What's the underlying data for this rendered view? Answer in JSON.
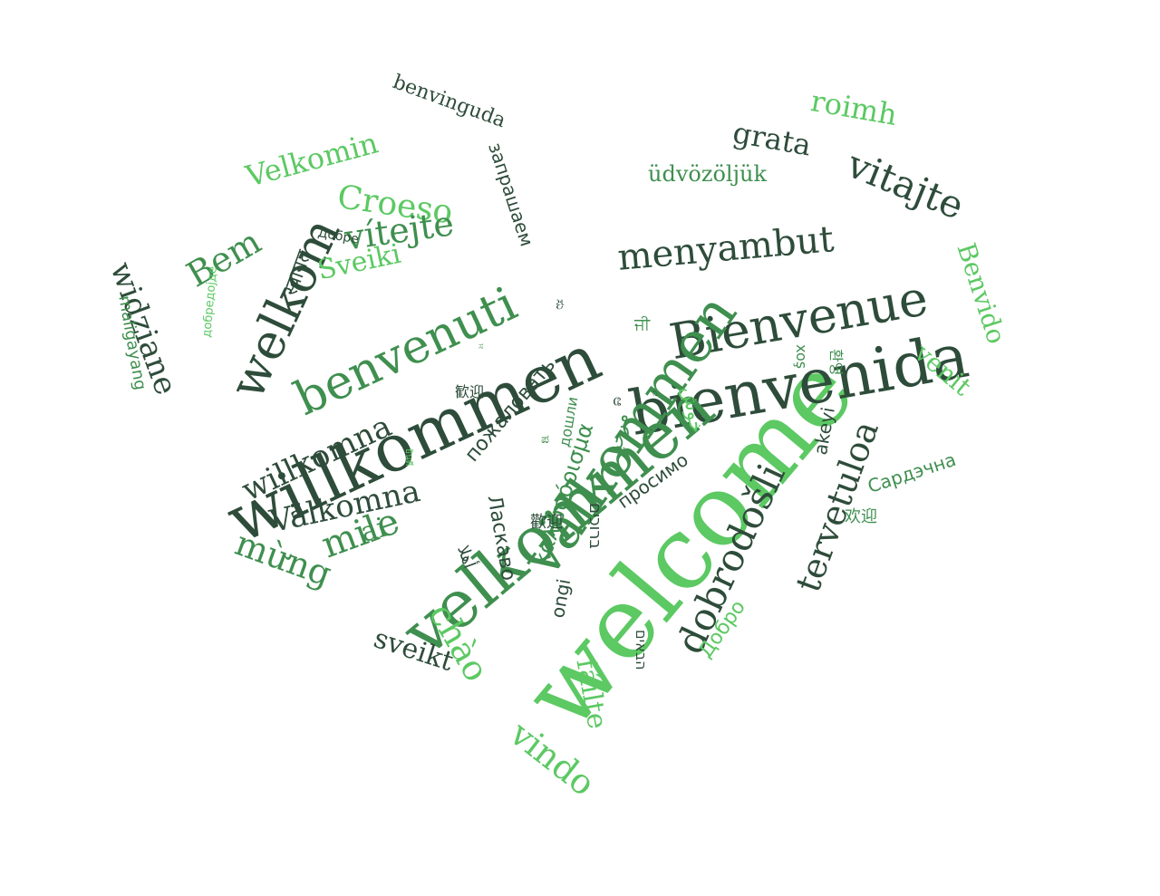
{
  "palette": {
    "dark": "#2e4c3a",
    "mid": "#3f8f4f",
    "light": "#5cc963"
  },
  "words": [
    {
      "text": "welcome",
      "color": "light"
    },
    {
      "text": "willkommen",
      "color": "dark"
    },
    {
      "text": "bienvenida",
      "color": "dark"
    },
    {
      "text": "velkommen",
      "color": "mid"
    },
    {
      "text": "Bienvenue",
      "color": "dark"
    },
    {
      "text": "welkom",
      "color": "dark"
    },
    {
      "text": "benvenuti",
      "color": "mid"
    },
    {
      "text": "välkommen",
      "color": "mid"
    },
    {
      "text": "menyambut",
      "color": "dark"
    },
    {
      "text": "vitajte",
      "color": "dark"
    },
    {
      "text": "dobrodošli",
      "color": "dark"
    },
    {
      "text": "tervetuloa",
      "color": "dark"
    },
    {
      "text": "willkomna",
      "color": "dark"
    },
    {
      "text": "Välkomna",
      "color": "dark"
    },
    {
      "text": "Croeso",
      "color": "light"
    },
    {
      "text": "vítejte",
      "color": "mid"
    },
    {
      "text": "Velkomin",
      "color": "light"
    },
    {
      "text": "Bem",
      "color": "mid"
    },
    {
      "text": "widziane",
      "color": "dark"
    },
    {
      "text": "mile",
      "color": "mid"
    },
    {
      "text": "mừng",
      "color": "mid"
    },
    {
      "text": "chào",
      "color": "light"
    },
    {
      "text": "sveikt",
      "color": "dark"
    },
    {
      "text": "vindo",
      "color": "light"
    },
    {
      "text": "fáilte",
      "color": "light"
    },
    {
      "text": "Benvido",
      "color": "light"
    },
    {
      "text": "venit",
      "color": "light"
    },
    {
      "text": "roimh",
      "color": "light"
    },
    {
      "text": "grata",
      "color": "dark"
    },
    {
      "text": "üdvözöljük",
      "color": "mid"
    },
    {
      "text": "benvinguda",
      "color": "dark"
    },
    {
      "text": "Sveiki",
      "color": "light"
    },
    {
      "text": "ai",
      "color": "mid"
    },
    {
      "text": "Ласкаво",
      "color": "dark"
    },
    {
      "text": "καλωσόρισμα",
      "color": "mid"
    },
    {
      "text": "пожаловать",
      "color": "dark"
    },
    {
      "text": "запрашаем",
      "color": "dark"
    },
    {
      "text": "Добре",
      "color": "dark"
    },
    {
      "text": "добредојде",
      "color": "light"
    },
    {
      "text": "maligayang",
      "color": "mid"
    },
    {
      "text": "Сардэчна",
      "color": "mid"
    },
    {
      "text": "Добро",
      "color": "light"
    },
    {
      "text": "просимо",
      "color": "dark"
    },
    {
      "text": "ongi",
      "color": "dark"
    },
    {
      "text": "akeyi",
      "color": "dark"
    },
    {
      "text": "xoş",
      "color": "mid"
    },
    {
      "text": "дошли",
      "color": "mid"
    },
    {
      "text": "أهلا",
      "color": "dark"
    },
    {
      "text": "مرحبا",
      "color": "mid"
    },
    {
      "text": "خوش",
      "color": "light"
    },
    {
      "text": "ברוכים",
      "color": "dark"
    },
    {
      "text": "הבאים",
      "color": "dark"
    },
    {
      "text": "स्वागत",
      "color": "dark"
    },
    {
      "text": "歡迎",
      "color": "dark"
    },
    {
      "text": "歓迎",
      "color": "dark"
    },
    {
      "text": "欢迎",
      "color": "mid"
    },
    {
      "text": "환영",
      "color": "mid"
    },
    {
      "text": "ยินดี",
      "color": "light"
    },
    {
      "text": "ਜੀ",
      "color": "mid"
    },
    {
      "text": "ನಿ",
      "color": "dark"
    },
    {
      "text": "ಸು",
      "color": "dark"
    },
    {
      "text": "ಆ",
      "color": "dark"
    },
    {
      "text": "ಸ",
      "color": "mid"
    },
    {
      "text": "ಪ",
      "color": "mid"
    }
  ]
}
